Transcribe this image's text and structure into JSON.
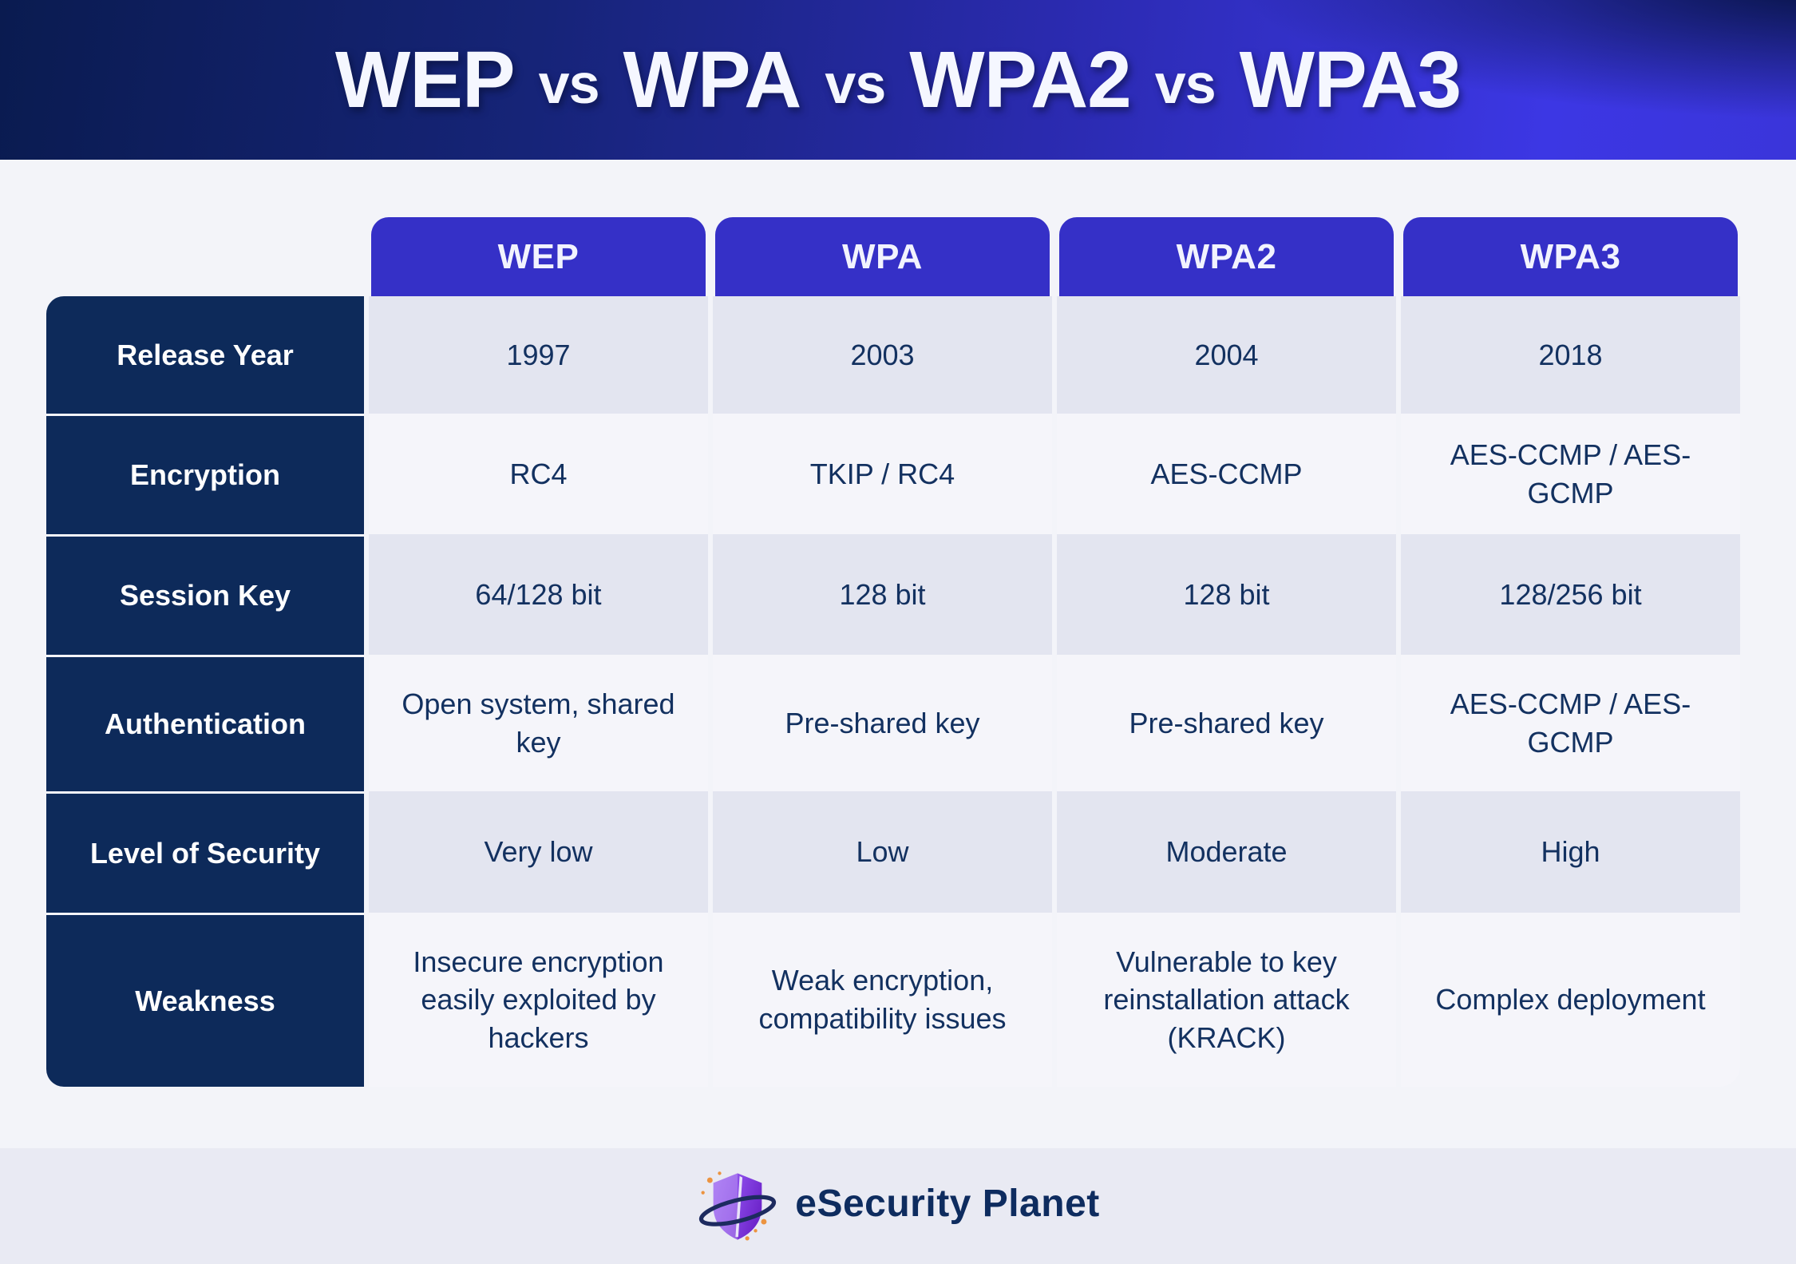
{
  "title": {
    "text": "WEP vs WPA vs WPA2 vs WPA3",
    "segments": [
      {
        "text": "WEP",
        "kind": "protocol"
      },
      {
        "text": "vs",
        "kind": "vs"
      },
      {
        "text": "WPA",
        "kind": "protocol"
      },
      {
        "text": "vs",
        "kind": "vs"
      },
      {
        "text": "WPA2",
        "kind": "protocol"
      },
      {
        "text": "vs",
        "kind": "vs"
      },
      {
        "text": "WPA3",
        "kind": "protocol"
      }
    ]
  },
  "chart_data": {
    "type": "table",
    "title": "WEP vs WPA vs WPA2 vs WPA3",
    "columns": [
      "WEP",
      "WPA",
      "WPA2",
      "WPA3"
    ],
    "rows": [
      {
        "label": "Release Year",
        "values": [
          "1997",
          "2003",
          "2004",
          "2018"
        ]
      },
      {
        "label": "Encryption",
        "values": [
          "RC4",
          "TKIP / RC4",
          "AES-CCMP",
          "AES-CCMP / AES-GCMP"
        ]
      },
      {
        "label": "Session Key",
        "values": [
          "64/128 bit",
          "128 bit",
          "128 bit",
          "128/256 bit"
        ]
      },
      {
        "label": "Authentication",
        "values": [
          "Open system, shared key",
          "Pre-shared key",
          "Pre-shared key",
          "AES-CCMP / AES-GCMP"
        ]
      },
      {
        "label": "Level of Security",
        "values": [
          "Very low",
          "Low",
          "Moderate",
          "High"
        ]
      },
      {
        "label": "Weakness",
        "values": [
          "Insecure encryption easily exploited by hackers",
          "Weak encryption, compatibility issues",
          "Vulnerable to key reinstallation attack (KRACK)",
          "Complex deployment"
        ]
      }
    ],
    "legend": null,
    "grid": false
  },
  "footer": {
    "brand": "eSecurity Planet"
  },
  "colors": {
    "banner_dark_navy": "#0a1b50",
    "banner_bright_blue": "#3c37e4",
    "column_header_blue": "#3530c7",
    "row_label_navy": "#0d2a5a",
    "row_dark_bg": "#e3e5f0",
    "row_light_bg": "#f5f5fa",
    "page_bg": "#f3f4f9",
    "footer_bg": "#e9eaf3",
    "cell_text_navy": "#133160",
    "logo_purple": "#7b3ddb",
    "logo_violet": "#9a63f2",
    "logo_ring_navy": "#1d2b5f",
    "logo_sparkle_orange": "#ec9440"
  }
}
